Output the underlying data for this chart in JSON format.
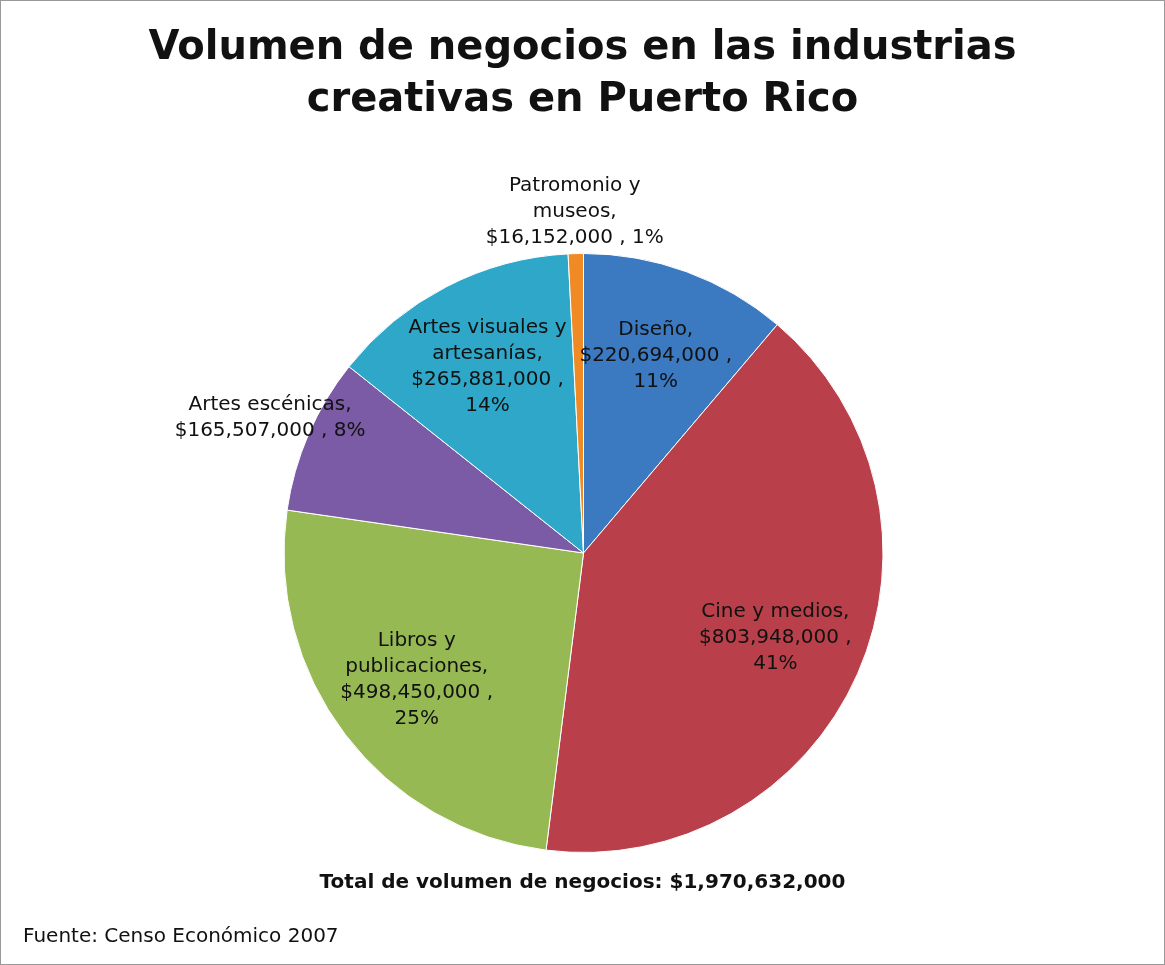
{
  "chart_data": {
    "type": "pie",
    "title": "Volumen de negocios en las industrias creativas en Puerto Rico",
    "categories": [
      "Diseño",
      "Cine y medios",
      "Libros y publicaciones",
      "Artes escénicas",
      "Artes visuales y artesanías",
      "Patromonio y museos"
    ],
    "values": [
      220694000,
      803948000,
      498450000,
      165507000,
      265881000,
      16152000
    ],
    "colors": [
      "#3b79c0",
      "#b9404a",
      "#97b954",
      "#7b5aa6",
      "#2ea7c8",
      "#f08a24"
    ],
    "value_labels": [
      ", $220,694,000 , 11%",
      ", $803,948,000 , 41%",
      ", $498,450,000 , 25%",
      ", $165,507,000 , 8%",
      ", $265,881,000 , 14%",
      ", $16,152,000 , 1%"
    ],
    "legend": false,
    "annotations": [
      "Total de volumen de negocios: $1,970,632,000",
      "Fuente: Censo Económico 2007"
    ]
  }
}
